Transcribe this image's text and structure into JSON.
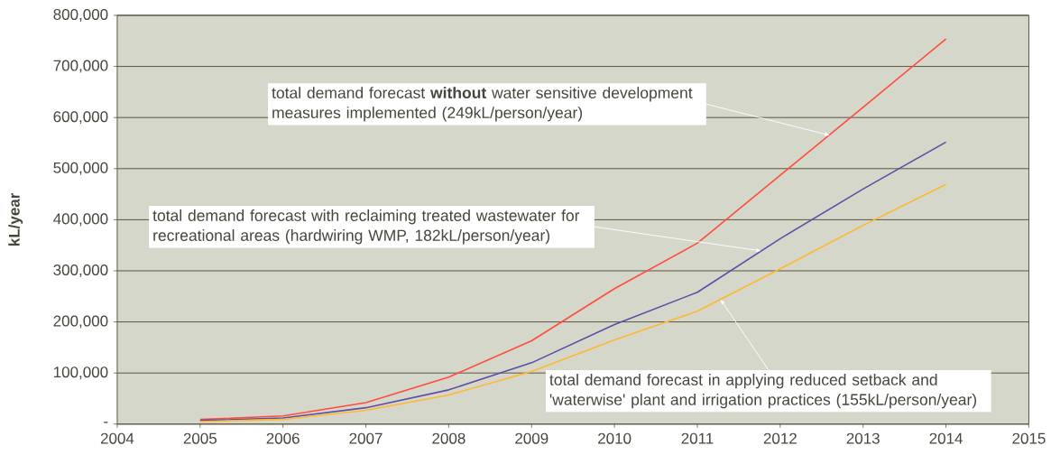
{
  "chart_data": {
    "type": "line",
    "ylabel": "kL/year",
    "x": [
      2005,
      2006,
      2007,
      2008,
      2009,
      2010,
      2011,
      2012,
      2013,
      2014
    ],
    "series": [
      {
        "color": "#ff4c3b",
        "values": [
          9000,
          16000,
          42000,
          92000,
          163000,
          265000,
          354000,
          487000,
          620000,
          754000
        ]
      },
      {
        "color": "#5b4ea6",
        "values": [
          7000,
          12000,
          32000,
          67000,
          120000,
          195000,
          258000,
          363000,
          460000,
          552000
        ]
      },
      {
        "color": "#ffb830",
        "values": [
          5000,
          9000,
          27000,
          57000,
          103000,
          165000,
          221000,
          304000,
          389000,
          469000
        ]
      }
    ],
    "xlim": [
      2004,
      2015
    ],
    "xticks": [
      2004,
      2005,
      2006,
      2007,
      2008,
      2009,
      2010,
      2011,
      2012,
      2013,
      2014,
      2015
    ],
    "ylim": [
      0,
      800000
    ],
    "yticks": [
      {
        "value": 0,
        "label": "-"
      },
      {
        "value": 100000,
        "label": "100,000"
      },
      {
        "value": 200000,
        "label": "200,000"
      },
      {
        "value": 300000,
        "label": "300,000"
      },
      {
        "value": 400000,
        "label": "400,000"
      },
      {
        "value": 500000,
        "label": "500,000"
      },
      {
        "value": 600000,
        "label": "600,000"
      },
      {
        "value": 700000,
        "label": "700,000"
      },
      {
        "value": 800000,
        "label": "800,000"
      }
    ],
    "grid": "y",
    "marker": "none",
    "line_style": "solid",
    "annotations": [
      {
        "text": "total demand forecast **without** water sensitive development\nmeasures implemented (249kL/person/year)",
        "x": 2012.6,
        "y": 565000
      },
      {
        "text": "total demand forecast with reclaiming treated wastewater for\nrecreational areas (hardwiring WMP, 182kL/person/year)",
        "x": 2011.77,
        "y": 339000
      },
      {
        "text": "total demand forecast in applying reduced setback and\n'waterwise' plant and irrigation practices (155kL/person/year)",
        "x": 2011.28,
        "y": 244000
      }
    ]
  }
}
